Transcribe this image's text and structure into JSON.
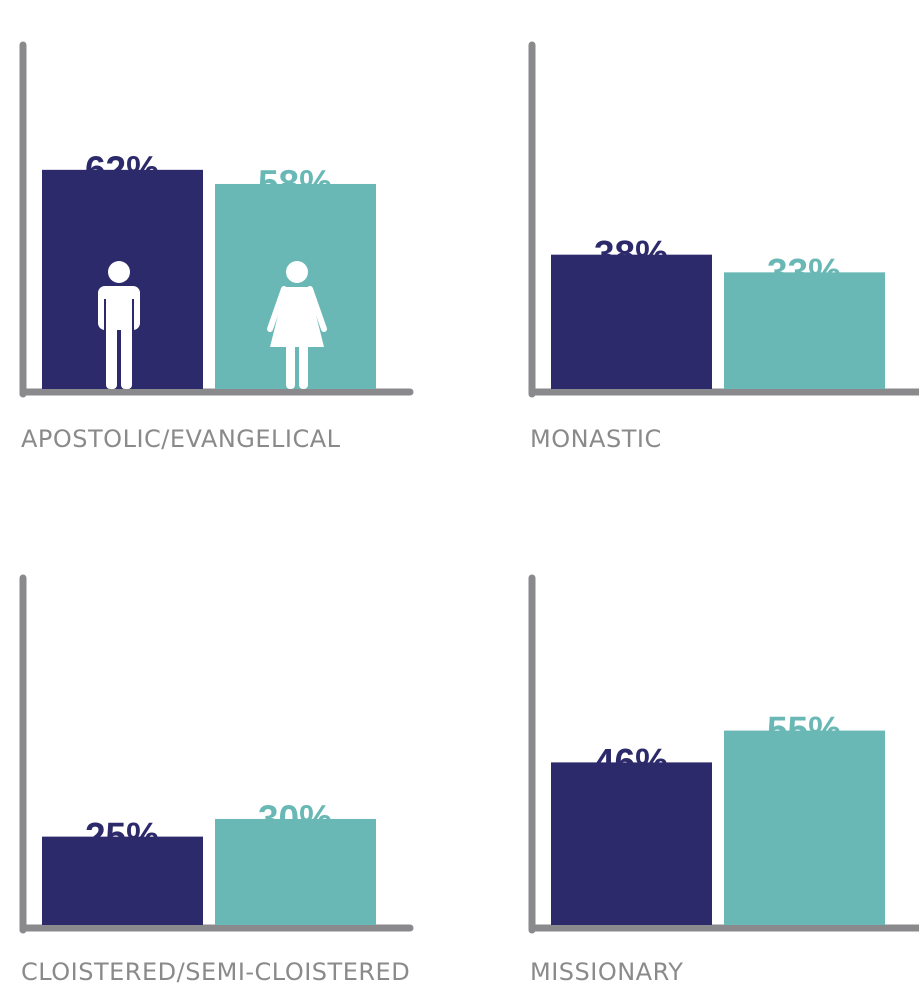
{
  "colors": {
    "men": "#2d2a6b",
    "women": "#6ab8b5",
    "axis": "#8a8a8c",
    "label": "#8a8a8a"
  },
  "chart_data": [
    {
      "type": "bar",
      "category": "APOSTOLIC/EVANGELICAL",
      "series": [
        {
          "value": 62,
          "label": "62%",
          "icon": "man-icon"
        },
        {
          "value": 58,
          "label": "58%",
          "icon": "woman-icon"
        }
      ]
    },
    {
      "type": "bar",
      "category": "MONASTIC",
      "series": [
        {
          "value": 38,
          "label": "38%"
        },
        {
          "value": 33,
          "label": "33%"
        }
      ]
    },
    {
      "type": "bar",
      "category": "CLOISTERED/SEMI-CLOISTERED",
      "series": [
        {
          "value": 25,
          "label": "25%"
        },
        {
          "value": 30,
          "label": "30%"
        }
      ]
    },
    {
      "type": "bar",
      "category": "MISSIONARY",
      "series": [
        {
          "value": 46,
          "label": "46%"
        },
        {
          "value": 55,
          "label": "55%"
        }
      ]
    }
  ]
}
